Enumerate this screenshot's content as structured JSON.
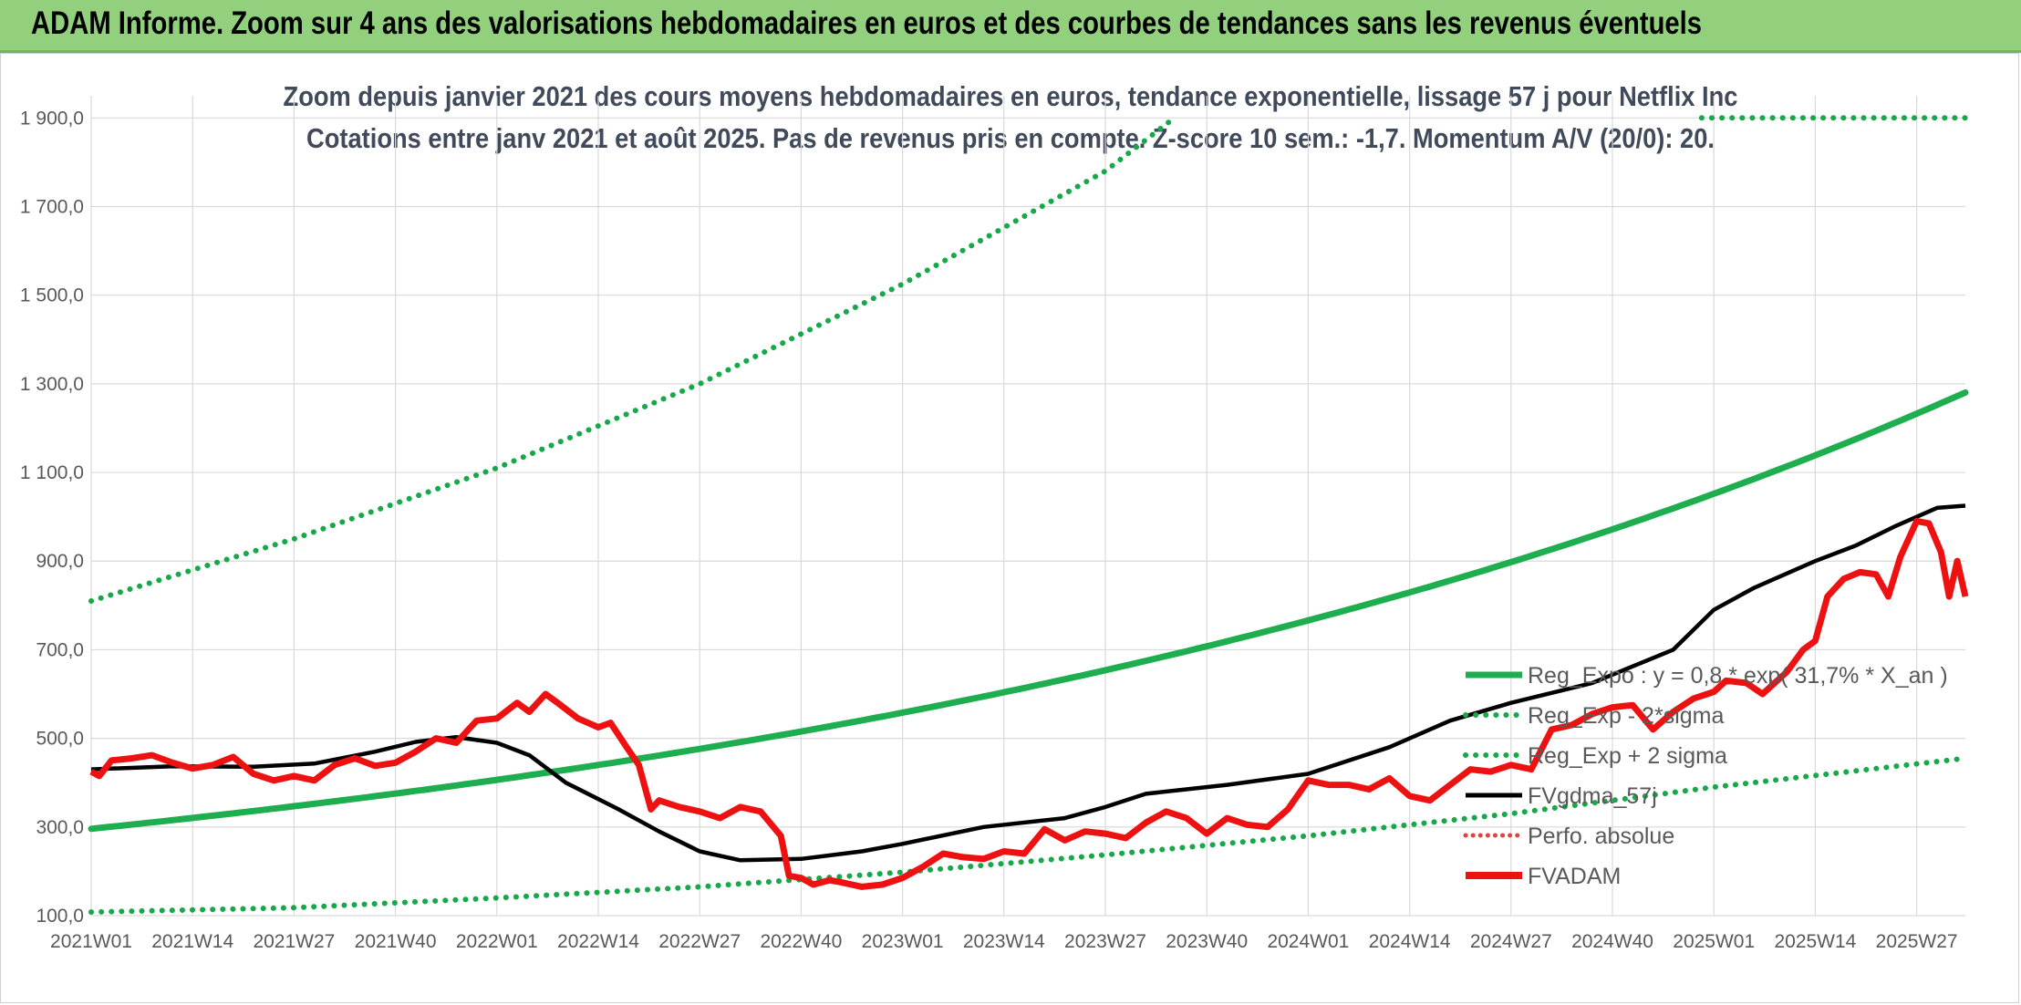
{
  "header": {
    "title": "ADAM Informe. Zoom sur 4 ans des valorisations hebdomadaires en euros et des courbes de tendances sans les revenus éventuels"
  },
  "chart_data": {
    "type": "line",
    "title_line1": "Zoom depuis janvier 2021 des cours moyens hebdomadaires en euros, tendance exponentielle, lissage 57 j pour Netflix Inc",
    "title_line2": "Cotations entre janv 2021 et août 2025. Pas de revenus pris en compte. Z-score 10 sem.: -1,7. Momentum A/V (20/0): 20.",
    "x_axis": {
      "start": 2021.0,
      "end": 2025.62
    },
    "xticks": [
      "2021W01",
      "2021W14",
      "2021W27",
      "2021W40",
      "2022W01",
      "2022W14",
      "2022W27",
      "2022W40",
      "2023W01",
      "2023W14",
      "2023W27",
      "2023W40",
      "2024W01",
      "2024W14",
      "2024W27",
      "2024W40",
      "2025W01",
      "2025W14",
      "2025W27"
    ],
    "ylim": [
      100,
      1950
    ],
    "yticks": [
      100,
      300,
      500,
      700,
      900,
      1100,
      1300,
      1500,
      1700,
      1900
    ],
    "ytick_labels": [
      "100,0",
      "300,0",
      "500,0",
      "700,0",
      "900,0",
      "1 100,0",
      "1 300,0",
      "1 500,0",
      "1 700,0",
      "1 900,0"
    ],
    "grid": true,
    "legend_position": "bottom-right",
    "colors": {
      "trend": "#1fae4f",
      "band": "#17a84a",
      "sma": "#000000",
      "price": "#ee1111",
      "perf": "#e84040"
    },
    "trend": {
      "a": 0.8,
      "rate": 0.317,
      "base_year": 2021.0,
      "start_value": 296
    },
    "band_high_cap": 1900,
    "series": [
      {
        "key": "reg_expo",
        "name": "Reg_Expo : y = 0,8 * exp( 31,7% *  X_an )",
        "style": "solid-green"
      },
      {
        "key": "reg_minus",
        "name": "Reg_Exp - 2*sigma",
        "style": "dotted-green",
        "values": [
          [
            2021.0,
            108
          ],
          [
            2021.5,
            118
          ],
          [
            2022.0,
            140
          ],
          [
            2022.5,
            165
          ],
          [
            2023.0,
            198
          ],
          [
            2023.5,
            237
          ],
          [
            2024.0,
            280
          ],
          [
            2024.5,
            330
          ],
          [
            2025.0,
            390
          ],
          [
            2025.62,
            455
          ]
        ]
      },
      {
        "key": "reg_plus",
        "name": "Reg_Exp + 2 sigma",
        "style": "dotted-green",
        "values": [
          [
            2021.0,
            810
          ],
          [
            2021.5,
            950
          ],
          [
            2022.0,
            1110
          ],
          [
            2022.5,
            1300
          ],
          [
            2023.0,
            1525
          ],
          [
            2023.5,
            1780
          ],
          [
            2023.67,
            1900
          ]
        ]
      },
      {
        "key": "fvgdma",
        "name": "FVgdma_57j",
        "style": "solid-black",
        "values": [
          [
            2021.0,
            430
          ],
          [
            2021.2,
            437
          ],
          [
            2021.4,
            436
          ],
          [
            2021.55,
            443
          ],
          [
            2021.7,
            470
          ],
          [
            2021.8,
            492
          ],
          [
            2021.9,
            503
          ],
          [
            2022.0,
            490
          ],
          [
            2022.08,
            462
          ],
          [
            2022.17,
            400
          ],
          [
            2022.3,
            340
          ],
          [
            2022.4,
            290
          ],
          [
            2022.5,
            245
          ],
          [
            2022.6,
            225
          ],
          [
            2022.75,
            228
          ],
          [
            2022.9,
            245
          ],
          [
            2023.0,
            262
          ],
          [
            2023.2,
            300
          ],
          [
            2023.4,
            320
          ],
          [
            2023.5,
            345
          ],
          [
            2023.6,
            375
          ],
          [
            2023.8,
            395
          ],
          [
            2024.0,
            420
          ],
          [
            2024.2,
            480
          ],
          [
            2024.35,
            540
          ],
          [
            2024.5,
            580
          ],
          [
            2024.7,
            625
          ],
          [
            2024.9,
            700
          ],
          [
            2025.0,
            790
          ],
          [
            2025.1,
            840
          ],
          [
            2025.25,
            900
          ],
          [
            2025.35,
            935
          ],
          [
            2025.45,
            980
          ],
          [
            2025.55,
            1020
          ],
          [
            2025.62,
            1025
          ]
        ]
      },
      {
        "key": "perfo",
        "name": "Perfo. absolue",
        "style": "dotted-red",
        "values": []
      },
      {
        "key": "fvadam",
        "name": "FVADAM",
        "style": "solid-red",
        "values": [
          [
            2021.0,
            425
          ],
          [
            2021.02,
            415
          ],
          [
            2021.05,
            450
          ],
          [
            2021.1,
            455
          ],
          [
            2021.15,
            462
          ],
          [
            2021.2,
            445
          ],
          [
            2021.25,
            432
          ],
          [
            2021.3,
            440
          ],
          [
            2021.35,
            458
          ],
          [
            2021.4,
            420
          ],
          [
            2021.45,
            405
          ],
          [
            2021.5,
            415
          ],
          [
            2021.55,
            405
          ],
          [
            2021.6,
            440
          ],
          [
            2021.65,
            455
          ],
          [
            2021.7,
            438
          ],
          [
            2021.75,
            445
          ],
          [
            2021.8,
            470
          ],
          [
            2021.85,
            500
          ],
          [
            2021.9,
            490
          ],
          [
            2021.95,
            540
          ],
          [
            2022.0,
            545
          ],
          [
            2022.05,
            580
          ],
          [
            2022.08,
            560
          ],
          [
            2022.12,
            600
          ],
          [
            2022.15,
            580
          ],
          [
            2022.2,
            545
          ],
          [
            2022.25,
            525
          ],
          [
            2022.28,
            535
          ],
          [
            2022.32,
            480
          ],
          [
            2022.35,
            440
          ],
          [
            2022.38,
            340
          ],
          [
            2022.4,
            360
          ],
          [
            2022.45,
            345
          ],
          [
            2022.5,
            335
          ],
          [
            2022.55,
            320
          ],
          [
            2022.6,
            345
          ],
          [
            2022.65,
            335
          ],
          [
            2022.7,
            280
          ],
          [
            2022.72,
            190
          ],
          [
            2022.75,
            185
          ],
          [
            2022.78,
            170
          ],
          [
            2022.82,
            180
          ],
          [
            2022.85,
            175
          ],
          [
            2022.9,
            165
          ],
          [
            2022.95,
            170
          ],
          [
            2023.0,
            185
          ],
          [
            2023.05,
            210
          ],
          [
            2023.1,
            240
          ],
          [
            2023.15,
            232
          ],
          [
            2023.2,
            228
          ],
          [
            2023.25,
            245
          ],
          [
            2023.3,
            240
          ],
          [
            2023.35,
            295
          ],
          [
            2023.4,
            270
          ],
          [
            2023.45,
            290
          ],
          [
            2023.5,
            285
          ],
          [
            2023.55,
            275
          ],
          [
            2023.6,
            310
          ],
          [
            2023.65,
            335
          ],
          [
            2023.7,
            320
          ],
          [
            2023.75,
            285
          ],
          [
            2023.8,
            320
          ],
          [
            2023.85,
            305
          ],
          [
            2023.9,
            300
          ],
          [
            2023.95,
            340
          ],
          [
            2024.0,
            405
          ],
          [
            2024.05,
            395
          ],
          [
            2024.1,
            395
          ],
          [
            2024.15,
            385
          ],
          [
            2024.2,
            410
          ],
          [
            2024.25,
            370
          ],
          [
            2024.3,
            360
          ],
          [
            2024.35,
            395
          ],
          [
            2024.4,
            430
          ],
          [
            2024.45,
            425
          ],
          [
            2024.5,
            440
          ],
          [
            2024.55,
            430
          ],
          [
            2024.6,
            520
          ],
          [
            2024.65,
            530
          ],
          [
            2024.7,
            555
          ],
          [
            2024.75,
            570
          ],
          [
            2024.8,
            575
          ],
          [
            2024.85,
            520
          ],
          [
            2024.9,
            560
          ],
          [
            2024.95,
            590
          ],
          [
            2025.0,
            605
          ],
          [
            2025.03,
            630
          ],
          [
            2025.08,
            625
          ],
          [
            2025.12,
            600
          ],
          [
            2025.18,
            650
          ],
          [
            2025.22,
            700
          ],
          [
            2025.25,
            720
          ],
          [
            2025.28,
            820
          ],
          [
            2025.32,
            860
          ],
          [
            2025.36,
            875
          ],
          [
            2025.4,
            870
          ],
          [
            2025.43,
            820
          ],
          [
            2025.46,
            910
          ],
          [
            2025.5,
            990
          ],
          [
            2025.53,
            985
          ],
          [
            2025.56,
            920
          ],
          [
            2025.58,
            820
          ],
          [
            2025.6,
            900
          ],
          [
            2025.62,
            820
          ]
        ]
      }
    ]
  }
}
